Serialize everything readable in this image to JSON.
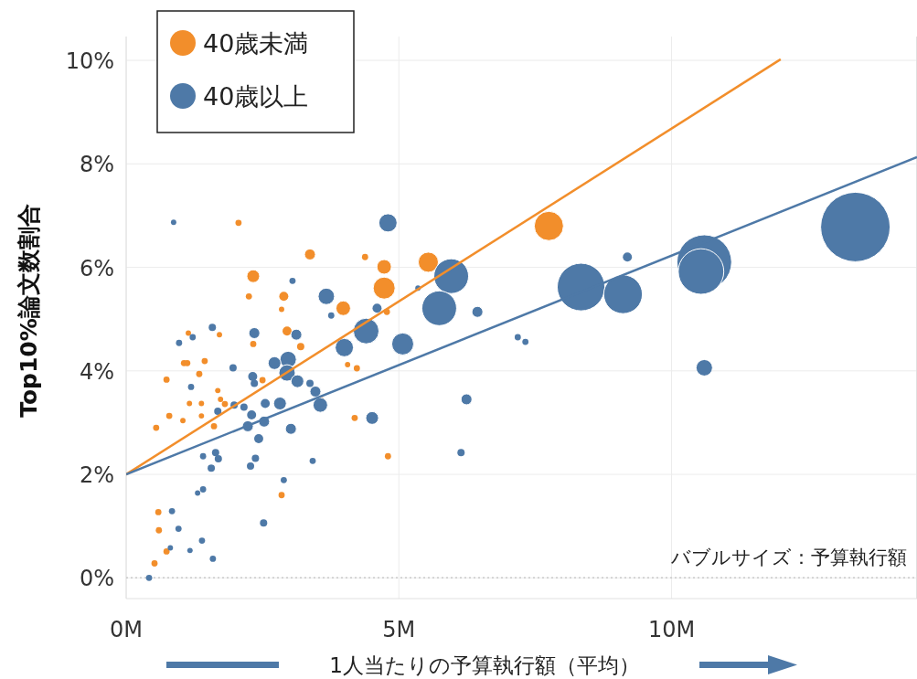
{
  "chart_data": {
    "type": "bubble",
    "xlabel": "1人当たりの予算執行額（平均）",
    "ylabel": "Top10%論文数割合",
    "annotations": [
      "バブルサイズ：予算執行額"
    ],
    "xlim": [
      0,
      14.5
    ],
    "ylim": [
      -0.4,
      10.46
    ],
    "xticks": [
      {
        "value": 0,
        "label": "0M"
      },
      {
        "value": 5,
        "label": "5M"
      },
      {
        "value": 10,
        "label": "10M"
      }
    ],
    "yticks": [
      {
        "value": 0,
        "label": "0%"
      },
      {
        "value": 2,
        "label": "2%"
      },
      {
        "value": 4,
        "label": "4%"
      },
      {
        "value": 6,
        "label": "6%"
      },
      {
        "value": 8,
        "label": "8%"
      },
      {
        "value": 10,
        "label": "10%"
      }
    ],
    "grid": true,
    "legend": "top left",
    "ref_lines": [
      {
        "axis": "y",
        "value": 0,
        "color": "#c8c8c8",
        "line_style": "dotted"
      }
    ],
    "series": [
      {
        "name": "40歳未満",
        "color": "#f28e2b",
        "x": [
          7.75,
          5.54,
          4.73,
          4.73,
          3.98,
          3.37,
          4.38,
          2.06,
          2.33,
          2.25,
          2.89,
          2.85,
          4.78,
          1.71,
          1.14,
          2.95,
          2.33,
          3.2,
          1.06,
          1.12,
          1.44,
          1.34,
          4.06,
          4.23,
          2.5,
          1.68,
          1.73,
          1.16,
          1.38,
          1.81,
          1.38,
          1.04,
          1.61,
          3.57,
          4.19,
          0.52,
          0.74,
          0.6,
          0.59,
          0.74,
          0.55,
          0.79,
          2.85,
          4.8
        ],
        "values": [
          6.8,
          6.1,
          5.6,
          6.01,
          5.21,
          6.25,
          6.2,
          6.86,
          5.83,
          5.44,
          5.44,
          5.19,
          5.14,
          4.7,
          4.73,
          4.77,
          4.52,
          4.47,
          4.15,
          4.15,
          4.19,
          3.94,
          4.12,
          4.05,
          3.82,
          3.62,
          3.45,
          3.37,
          3.37,
          3.36,
          3.13,
          3.04,
          2.93,
          3.45,
          3.09,
          0.28,
          0.51,
          0.92,
          1.27,
          3.83,
          2.9,
          3.13,
          1.6,
          2.35
        ],
        "sizes": [
          0.177,
          0.084,
          0.1,
          0.044,
          0.044,
          0.025,
          0.008,
          0.008,
          0.034,
          0.008,
          0.017,
          0.006,
          0.008,
          0.006,
          0.006,
          0.017,
          0.008,
          0.011,
          0.008,
          0.008,
          0.008,
          0.008,
          0.006,
          0.008,
          0.008,
          0.006,
          0.006,
          0.006,
          0.006,
          0.008,
          0.006,
          0.006,
          0.008,
          0.006,
          0.008,
          0.008,
          0.008,
          0.008,
          0.008,
          0.008,
          0.008,
          0.008,
          0.008,
          0.008
        ]
      },
      {
        "name": "40歳以上",
        "color": "#4e79a7",
        "x": [
          13.37,
          10.6,
          10.54,
          8.34,
          9.11,
          5.96,
          5.74,
          4.8,
          4.4,
          5.07,
          3.67,
          4.0,
          3.56,
          2.97,
          2.95,
          2.82,
          3.14,
          2.72,
          3.47,
          10.6,
          9.19,
          6.44,
          4.51,
          6.24,
          6.14,
          7.18,
          7.32,
          5.35,
          4.6,
          3.05,
          3.76,
          0.87,
          1.58,
          0.97,
          1.22,
          2.35,
          3.12,
          1.96,
          2.32,
          2.35,
          1.19,
          3.37,
          2.55,
          1.98,
          2.16,
          1.68,
          2.3,
          2.53,
          2.23,
          3.02,
          2.43,
          1.64,
          1.69,
          1.41,
          2.37,
          1.56,
          2.28,
          2.89,
          1.41,
          1.31,
          2.52,
          0.84,
          0.96,
          1.39,
          0.81,
          1.17,
          1.59,
          3.42,
          0.42
        ],
        "values": [
          6.78,
          6.1,
          5.92,
          5.62,
          5.48,
          5.83,
          5.21,
          6.86,
          4.77,
          4.52,
          5.44,
          4.45,
          3.34,
          4.22,
          3.96,
          3.37,
          3.8,
          4.15,
          3.6,
          4.06,
          6.2,
          5.14,
          3.09,
          3.45,
          2.42,
          4.65,
          4.56,
          5.6,
          5.21,
          5.74,
          5.07,
          6.87,
          4.84,
          4.54,
          4.65,
          4.73,
          4.7,
          4.06,
          3.89,
          3.76,
          3.69,
          3.76,
          3.37,
          3.34,
          3.3,
          3.22,
          3.15,
          3.02,
          2.93,
          2.88,
          2.69,
          2.42,
          2.3,
          2.35,
          2.31,
          2.12,
          2.16,
          1.89,
          1.71,
          1.64,
          1.06,
          1.29,
          0.95,
          0.72,
          0.58,
          0.53,
          0.37,
          2.26,
          0.0
        ],
        "sizes": [
          1,
          0.62,
          0.43,
          0.47,
          0.31,
          0.25,
          0.25,
          0.069,
          0.136,
          0.1,
          0.056,
          0.069,
          0.044,
          0.056,
          0.056,
          0.034,
          0.034,
          0.034,
          0.025,
          0.056,
          0.017,
          0.025,
          0.034,
          0.025,
          0.011,
          0.008,
          0.008,
          0.006,
          0.017,
          0.008,
          0.008,
          0.006,
          0.011,
          0.008,
          0.008,
          0.025,
          0.025,
          0.011,
          0.017,
          0.011,
          0.008,
          0.011,
          0.017,
          0.011,
          0.011,
          0.011,
          0.017,
          0.025,
          0.025,
          0.025,
          0.017,
          0.011,
          0.011,
          0.008,
          0.011,
          0.011,
          0.011,
          0.008,
          0.008,
          0.006,
          0.011,
          0.008,
          0.008,
          0.008,
          0.006,
          0.006,
          0.008,
          0.008,
          0.008
        ]
      },
      {
        "type": "line",
        "color": "#f28e2b",
        "x": [
          0,
          12
        ],
        "values": [
          2,
          10.02
        ]
      },
      {
        "type": "line",
        "color": "#4e79a7",
        "x": [
          0,
          14.5
        ],
        "values": [
          2,
          8.13
        ]
      }
    ]
  }
}
